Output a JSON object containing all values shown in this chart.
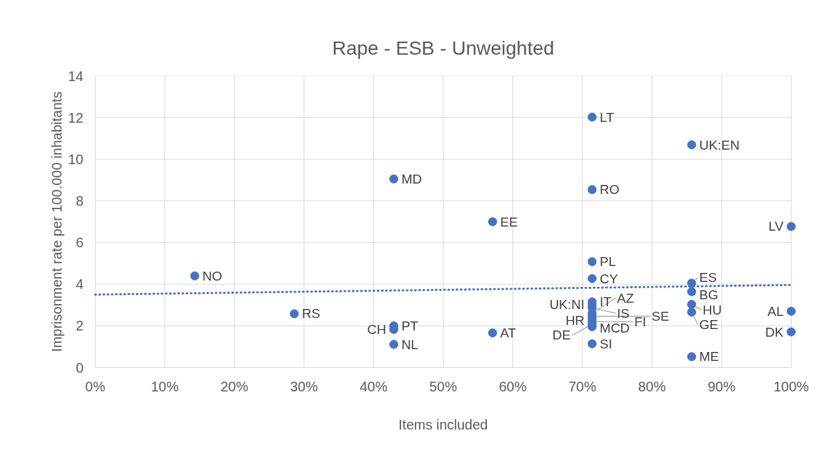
{
  "chart_data": {
    "type": "scatter",
    "title": "Rape - ESB - Unweighted",
    "xlabel": "Items included",
    "ylabel": "Imprisonment rate per 100.000 inhabitants",
    "xlim": [
      0,
      100
    ],
    "xticks": [
      {
        "value": 0,
        "label": "0%"
      },
      {
        "value": 10,
        "label": "10%"
      },
      {
        "value": 20,
        "label": "20%"
      },
      {
        "value": 30,
        "label": "30%"
      },
      {
        "value": 40,
        "label": "40%"
      },
      {
        "value": 50,
        "label": "50%"
      },
      {
        "value": 60,
        "label": "60%"
      },
      {
        "value": 70,
        "label": "70%"
      },
      {
        "value": 80,
        "label": "80%"
      },
      {
        "value": 90,
        "label": "90%"
      },
      {
        "value": 100,
        "label": "100%"
      }
    ],
    "ylim": [
      0,
      14
    ],
    "yticks": [
      0,
      2,
      4,
      6,
      8,
      10,
      12,
      14
    ],
    "grid": true,
    "series": [
      {
        "marker": "circle",
        "color": "#4472c4",
        "x": [
          14.3,
          28.6,
          42.9,
          42.9,
          42.9,
          42.9,
          57.1,
          57.1,
          71.4,
          71.4,
          71.4,
          71.4,
          71.4,
          71.4,
          71.4,
          71.4,
          71.4,
          71.4,
          71.4,
          71.4,
          71.4,
          71.4,
          85.7,
          85.7,
          85.7,
          85.7,
          85.7,
          85.7,
          100,
          100,
          100
        ],
        "values": [
          4.4,
          2.58,
          9.05,
          2.0,
          1.83,
          1.11,
          7.0,
          1.66,
          12.02,
          8.54,
          5.08,
          4.27,
          3.15,
          3.01,
          2.87,
          2.6,
          2.46,
          2.33,
          2.2,
          2.08,
          1.96,
          1.14,
          10.69,
          4.05,
          3.64,
          3.03,
          2.66,
          0.52,
          6.77,
          2.7,
          1.71
        ],
        "value_labels": [
          "NO",
          "RS",
          "MD",
          "PT",
          "CH",
          "NL",
          "EE",
          "AT",
          "LT",
          "RO",
          "PL",
          "CY",
          "IT",
          "UK:NI",
          "IS",
          "AZ",
          "SE",
          "HR",
          "FI",
          "DE",
          "MCD",
          "SI",
          "UK:EN",
          "ES",
          "BG",
          "HU",
          "GE",
          "ME",
          "LV",
          "AL",
          "DK"
        ]
      },
      {
        "type": "line",
        "marker": "none",
        "line_style": "dotted",
        "color": "#4472c4",
        "x": [
          0,
          100
        ],
        "values": [
          3.5,
          3.96
        ]
      }
    ]
  }
}
